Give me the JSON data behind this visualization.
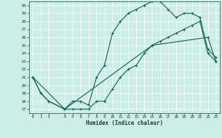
{
  "xlabel": "Humidex (Indice chaleur)",
  "bg_color": "#cceee8",
  "grid_color": "#ffffff",
  "line_color": "#1a6b5e",
  "line1_x": [
    0,
    1,
    2,
    4,
    5,
    6,
    7,
    8,
    9,
    10,
    11,
    12,
    13,
    14,
    15,
    16,
    17,
    18,
    19,
    20,
    21,
    22,
    23
  ],
  "line1_y": [
    21,
    19,
    18,
    17,
    18,
    18,
    17.5,
    21,
    22.5,
    26.5,
    28,
    29,
    29.5,
    30,
    30.5,
    30.5,
    29.5,
    28.5,
    29,
    29,
    28.5,
    24.5,
    23.5
  ],
  "line2_x": [
    0,
    1,
    2,
    4,
    5,
    6,
    7,
    8,
    9,
    10,
    11,
    12,
    13,
    14,
    15,
    16,
    17,
    18,
    19,
    20,
    21,
    22,
    23
  ],
  "line2_y": [
    21,
    19,
    18,
    17,
    17,
    17,
    17,
    18,
    18,
    19.5,
    21,
    22,
    22.5,
    24,
    25,
    25.5,
    26,
    26.5,
    27,
    27.5,
    28,
    24,
    23
  ],
  "line3_x": [
    0,
    4,
    15,
    22,
    23
  ],
  "line3_y": [
    21,
    17,
    25,
    26,
    23
  ],
  "xlim": [
    -0.5,
    23.5
  ],
  "ylim": [
    16.5,
    30.5
  ],
  "yticks": [
    17,
    18,
    19,
    20,
    21,
    22,
    23,
    24,
    25,
    26,
    27,
    28,
    29,
    30
  ],
  "xticks": [
    0,
    1,
    2,
    4,
    5,
    6,
    7,
    8,
    9,
    10,
    11,
    12,
    13,
    14,
    15,
    16,
    17,
    18,
    19,
    20,
    21,
    22,
    23
  ],
  "xtick_labels": [
    "0",
    "1",
    "2",
    "4",
    "5",
    "6",
    "7",
    "8",
    "9",
    "10",
    "11",
    "12",
    "13",
    "14",
    "15",
    "16",
    "17",
    "18",
    "19",
    "20",
    "21",
    "22",
    "23"
  ],
  "ytick_labels": [
    "17",
    "18",
    "19",
    "20",
    "21",
    "22",
    "23",
    "24",
    "25",
    "26",
    "27",
    "28",
    "29",
    "30"
  ],
  "marker": "+",
  "markersize": 3.5,
  "linewidth": 0.9
}
